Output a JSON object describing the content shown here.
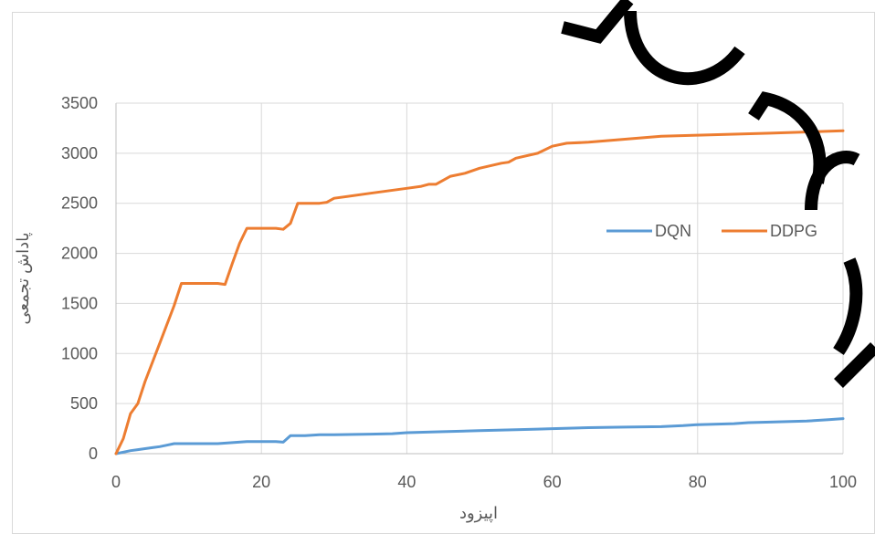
{
  "chart_data": {
    "type": "line",
    "xlabel": "اپیزود",
    "ylabel": "پاداش تجمعی",
    "xlim": [
      0,
      100
    ],
    "ylim": [
      0,
      3500
    ],
    "x_ticks": [
      0,
      20,
      40,
      60,
      80,
      100
    ],
    "y_ticks": [
      0,
      500,
      1000,
      1500,
      2000,
      2500,
      3000,
      3500
    ],
    "grid": true,
    "legend_position": "right",
    "series": [
      {
        "name": "DQN",
        "color": "#5B9BD5",
        "x": [
          0,
          1,
          2,
          3,
          4,
          5,
          6,
          7,
          8,
          9,
          10,
          12,
          14,
          16,
          18,
          20,
          22,
          23,
          24,
          26,
          28,
          30,
          35,
          38,
          40,
          45,
          50,
          55,
          58,
          60,
          65,
          70,
          75,
          78,
          80,
          85,
          87,
          90,
          95,
          98,
          100
        ],
        "values": [
          0,
          15,
          30,
          40,
          50,
          60,
          70,
          85,
          100,
          100,
          100,
          100,
          100,
          110,
          120,
          120,
          120,
          115,
          180,
          180,
          190,
          190,
          195,
          200,
          210,
          220,
          230,
          240,
          245,
          250,
          260,
          265,
          270,
          280,
          290,
          300,
          310,
          315,
          325,
          340,
          350
        ]
      },
      {
        "name": "DDPG",
        "color": "#ED7D31",
        "x": [
          0,
          1,
          2,
          3,
          4,
          6,
          8,
          9,
          10,
          12,
          14,
          15,
          16,
          17,
          18,
          19,
          20,
          22,
          23,
          24,
          25,
          26,
          28,
          29,
          30,
          35,
          40,
          42,
          43,
          44,
          46,
          48,
          50,
          53,
          54,
          55,
          58,
          60,
          62,
          65,
          70,
          75,
          80,
          90,
          100
        ],
        "values": [
          0,
          150,
          400,
          500,
          720,
          1100,
          1480,
          1700,
          1700,
          1700,
          1700,
          1690,
          1900,
          2100,
          2250,
          2250,
          2250,
          2250,
          2240,
          2300,
          2500,
          2500,
          2500,
          2510,
          2550,
          2600,
          2650,
          2670,
          2690,
          2690,
          2770,
          2800,
          2850,
          2900,
          2910,
          2950,
          3000,
          3070,
          3100,
          3110,
          3140,
          3170,
          3180,
          3200,
          3225
        ]
      }
    ]
  }
}
